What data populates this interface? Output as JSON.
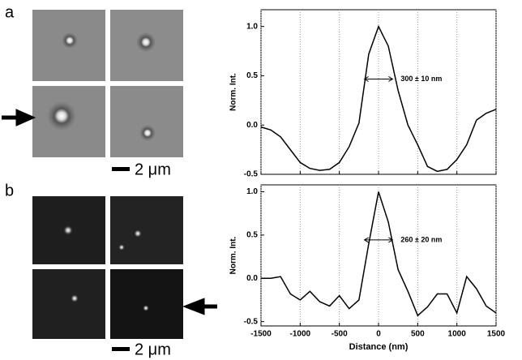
{
  "labels": {
    "panel_a": "a",
    "panel_b": "b",
    "scale_bar": "2 μm"
  },
  "chart_data": [
    {
      "type": "line",
      "ylabel": "Norm. Int.",
      "annotation": "300 ± 10 nm",
      "color": "#000000",
      "x": [
        -1500,
        -1375,
        -1250,
        -1125,
        -1000,
        -875,
        -750,
        -625,
        -500,
        -375,
        -250,
        -125,
        0,
        125,
        250,
        375,
        500,
        625,
        750,
        875,
        1000,
        1125,
        1250,
        1375,
        1500
      ],
      "values": [
        -0.02,
        -0.05,
        -0.12,
        -0.25,
        -0.38,
        -0.44,
        -0.46,
        -0.45,
        -0.38,
        -0.22,
        0.02,
        0.72,
        1.0,
        0.8,
        0.35,
        0.0,
        -0.2,
        -0.42,
        -0.47,
        -0.45,
        -0.35,
        -0.2,
        0.05,
        0.12,
        0.16
      ],
      "xlim": [
        -1500,
        1500
      ],
      "xticks": [
        -1500,
        -1000,
        -500,
        0,
        500,
        1000,
        1500
      ],
      "xticklabels": false,
      "ylim": [
        -0.5,
        1.17
      ],
      "yticks": [
        {
          "value": -0.5,
          "label": "-0.5"
        },
        {
          "value": 0,
          "label": "0.0"
        },
        {
          "value": 0.5,
          "label": "0.5"
        },
        {
          "value": 1,
          "label": "1.0"
        }
      ],
      "grid": true
    },
    {
      "type": "line",
      "ylabel": "Norm. Int.",
      "xlabel": "Distance (nm)",
      "annotation": "260 ± 20 nm",
      "color": "#000000",
      "x": [
        -1500,
        -1375,
        -1250,
        -1125,
        -1000,
        -875,
        -750,
        -625,
        -500,
        -375,
        -250,
        -125,
        0,
        125,
        250,
        375,
        500,
        625,
        750,
        875,
        1000,
        1125,
        1250,
        1375,
        1500
      ],
      "values": [
        0.0,
        0.0,
        0.02,
        -0.18,
        -0.25,
        -0.15,
        -0.27,
        -0.32,
        -0.2,
        -0.35,
        -0.25,
        0.4,
        1.0,
        0.65,
        0.1,
        -0.15,
        -0.43,
        -0.33,
        -0.18,
        -0.18,
        -0.4,
        0.02,
        -0.12,
        -0.32,
        -0.4
      ],
      "xlim": [
        -1500,
        1500
      ],
      "xticks": [
        -1500,
        -1000,
        -500,
        0,
        500,
        1000,
        1500
      ],
      "xticklabels": true,
      "ylim": [
        -0.55,
        1.08
      ],
      "yticks": [
        {
          "value": -0.5,
          "label": "-0.5"
        },
        {
          "value": 0,
          "label": "0.0"
        },
        {
          "value": 0.5,
          "label": "0.5"
        },
        {
          "value": 1,
          "label": "1.0"
        }
      ],
      "grid": true
    }
  ]
}
